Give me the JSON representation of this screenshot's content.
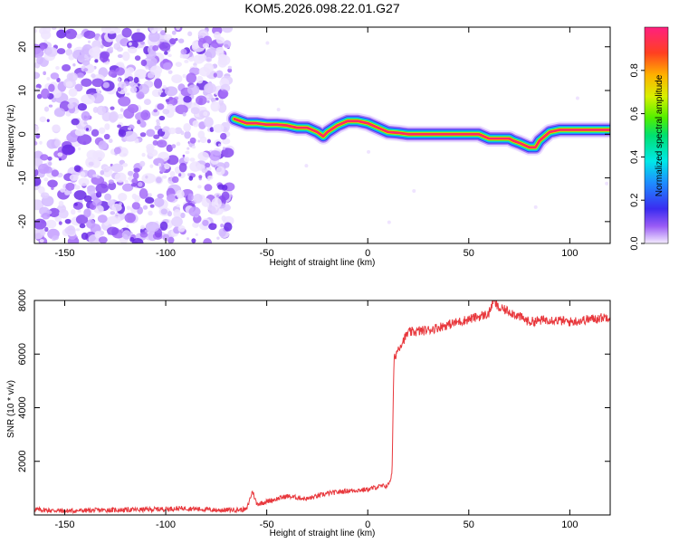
{
  "title": "KOM5.2026.098.22.01.G27",
  "chart_data": [
    {
      "type": "heatmap",
      "xlabel": "Height of straight line (km)",
      "ylabel": "Frequency (Hz)",
      "xlim": [
        -165,
        120
      ],
      "ylim": [
        -25,
        24.5
      ],
      "x_ticks": [
        -150,
        -100,
        -50,
        0,
        50,
        100
      ],
      "y_ticks": [
        -20,
        -10,
        0,
        10,
        20
      ],
      "noise_region_x": [
        -165,
        -68
      ],
      "colorbar": {
        "label": "Normalized spectral amplitude",
        "range": [
          0,
          1
        ],
        "ticks": [
          0.0,
          0.2,
          0.4,
          0.6,
          0.8
        ]
      },
      "ridge": {
        "x": [
          -66,
          -60,
          -55,
          -50,
          -45,
          -40,
          -35,
          -30,
          -25,
          -22,
          -20,
          -15,
          -10,
          -5,
          0,
          5,
          10,
          15,
          20,
          30,
          40,
          50,
          55,
          60,
          65,
          70,
          72,
          75,
          80,
          83,
          85,
          90,
          95,
          100,
          105,
          110,
          115,
          120
        ],
        "y": [
          3.5,
          2.5,
          2.5,
          2.2,
          2.2,
          2.0,
          1.5,
          1.5,
          0.5,
          -0.5,
          0.5,
          2.0,
          3.0,
          3.0,
          2.5,
          1.5,
          0.5,
          0.3,
          0.0,
          0.0,
          0.0,
          0.0,
          0.0,
          -1.0,
          -1.0,
          -1.0,
          -1.5,
          -2.0,
          -3.0,
          -3.0,
          -1.5,
          0.5,
          1.0,
          1.0,
          1.0,
          1.0,
          1.0,
          1.0
        ]
      }
    },
    {
      "type": "line",
      "xlabel": "Height of straight line (km)",
      "ylabel": "SNR (10 * v/v)",
      "xlim": [
        -165,
        120
      ],
      "ylim": [
        0,
        8000
      ],
      "x_ticks": [
        -150,
        -100,
        -50,
        0,
        50,
        100
      ],
      "y_ticks": [
        2000,
        4000,
        6000,
        8000
      ],
      "series": [
        {
          "color": "#e8383d",
          "x": [
            -165,
            -150,
            -130,
            -110,
            -90,
            -75,
            -60,
            -57,
            -55,
            -50,
            -40,
            -30,
            -20,
            -10,
            0,
            5,
            10,
            12,
            13,
            15,
            20,
            30,
            40,
            50,
            60,
            62,
            65,
            70,
            80,
            90,
            100,
            110,
            120
          ],
          "values": [
            200,
            150,
            180,
            200,
            250,
            180,
            200,
            900,
            400,
            500,
            700,
            600,
            800,
            900,
            950,
            1050,
            1100,
            1500,
            5800,
            6200,
            6800,
            6900,
            7100,
            7300,
            7500,
            8000,
            7700,
            7600,
            7200,
            7300,
            7200,
            7300,
            7400
          ]
        }
      ]
    }
  ]
}
